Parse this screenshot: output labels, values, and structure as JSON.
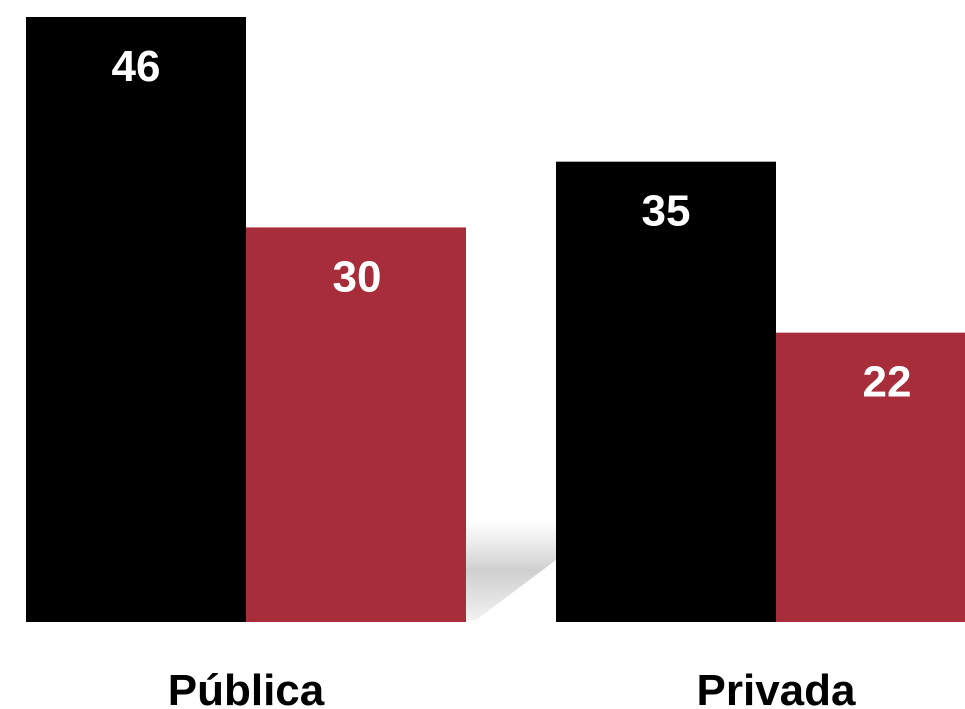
{
  "chart_data": {
    "type": "bar",
    "categories": [
      "Pública",
      "Privada"
    ],
    "series": [
      {
        "values": [
          46,
          35
        ],
        "color": "#000000"
      },
      {
        "values": [
          30,
          22
        ],
        "color": "#a82d3a"
      }
    ],
    "title": "",
    "xlabel": "",
    "ylabel": "",
    "ylim": [
      0,
      46
    ],
    "grid": false,
    "legend": "none",
    "data_labels": true,
    "label_color": "#ffffff"
  }
}
